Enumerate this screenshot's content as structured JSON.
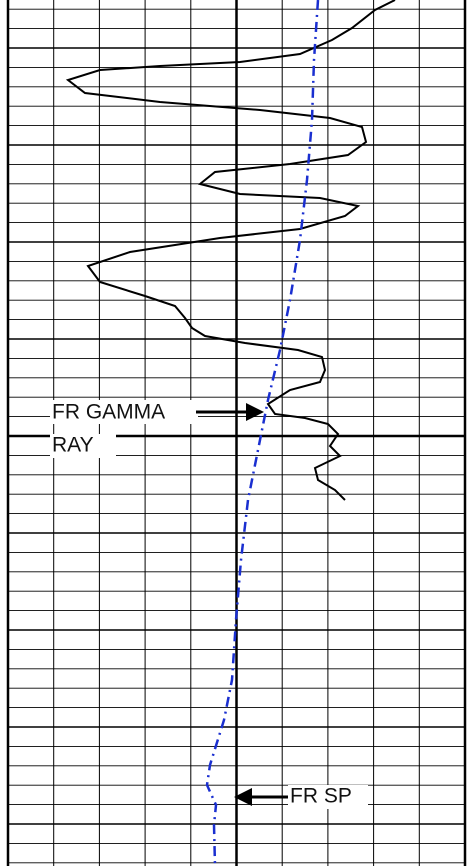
{
  "annotations": {
    "gamma_ray": [
      "FR GAMMA",
      "RAY"
    ],
    "sp": "FR SP"
  }
}
